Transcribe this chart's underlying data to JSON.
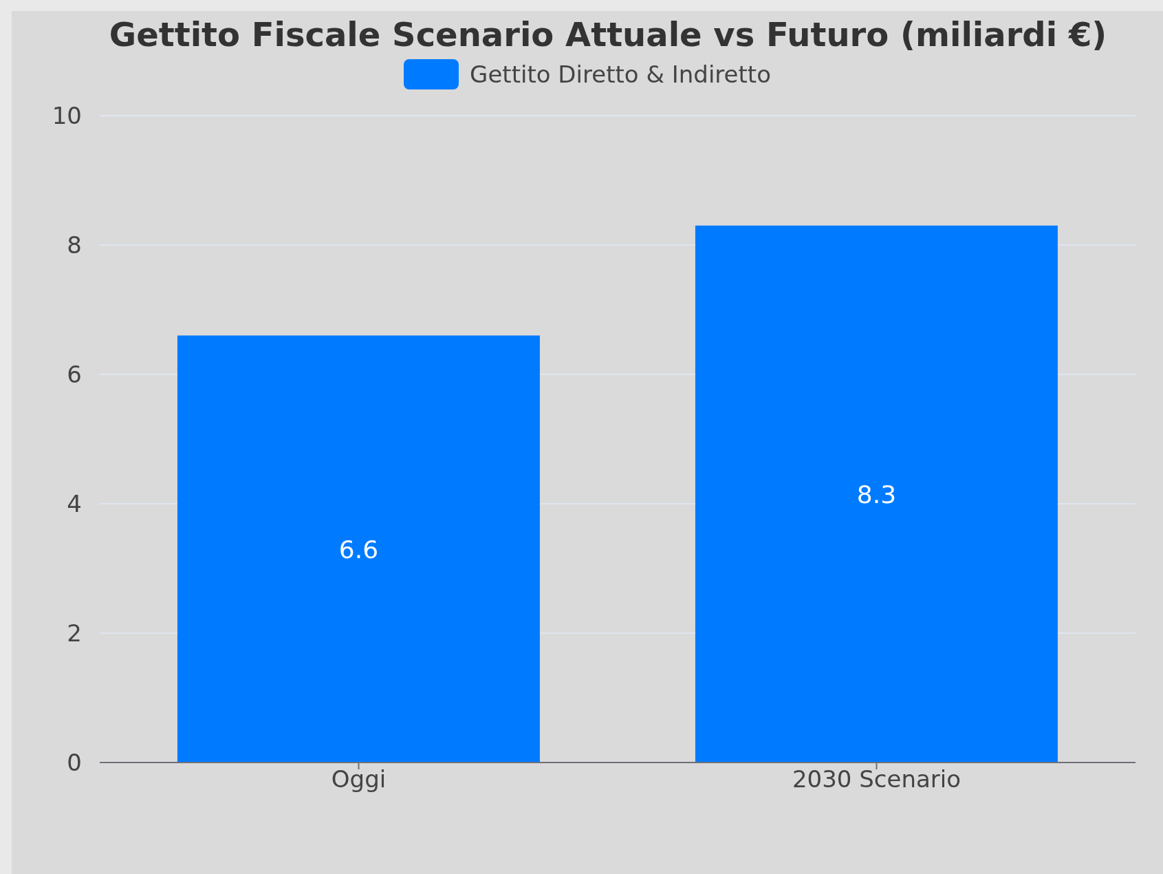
{
  "chart_data": {
    "type": "bar",
    "title": "Gettito Fiscale Scenario Attuale vs Futuro (miliardi €)",
    "categories": [
      "Oggi",
      "2030 Scenario"
    ],
    "series": [
      {
        "name": "Gettito Diretto & Indiretto",
        "color": "#007bff",
        "values": [
          6.6,
          8.3
        ]
      }
    ],
    "ylim": [
      0,
      10
    ],
    "yticks": [
      0,
      2,
      4,
      6,
      8,
      10
    ],
    "grid": "y",
    "legend": "top",
    "data_labels": true
  }
}
